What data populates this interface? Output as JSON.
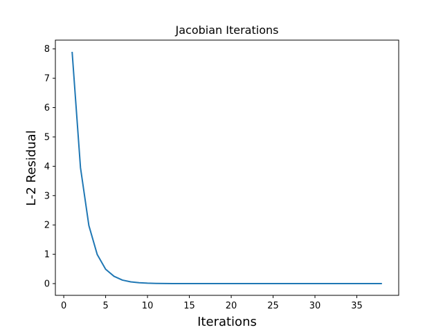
{
  "chart_data": {
    "type": "line",
    "title": "Jacobian Iterations",
    "xlabel": "Iterations",
    "ylabel": "L-2 Residual",
    "xlim": [
      -1,
      40
    ],
    "ylim": [
      -0.4,
      8.3
    ],
    "xticks": [
      0,
      5,
      10,
      15,
      20,
      25,
      30,
      35
    ],
    "yticks": [
      0,
      1,
      2,
      3,
      4,
      5,
      6,
      7,
      8
    ],
    "grid": false,
    "line_color": "#1f77b4",
    "series": [
      {
        "x": [
          1,
          2,
          3,
          4,
          5,
          6,
          7,
          8,
          9,
          10,
          11,
          12,
          13,
          14,
          15,
          16,
          17,
          18,
          19,
          20,
          21,
          22,
          23,
          24,
          25,
          26,
          27,
          28,
          29,
          30,
          31,
          32,
          33,
          34,
          35,
          36,
          37,
          38
        ],
        "values": [
          7.9,
          3.95,
          1.98,
          0.99,
          0.49,
          0.25,
          0.12,
          0.06,
          0.03,
          0.015,
          0.008,
          0.004,
          0.002,
          0.001,
          0,
          0,
          0,
          0,
          0,
          0,
          0,
          0,
          0,
          0,
          0,
          0,
          0,
          0,
          0,
          0,
          0,
          0,
          0,
          0,
          0,
          0,
          0,
          0
        ]
      }
    ]
  }
}
